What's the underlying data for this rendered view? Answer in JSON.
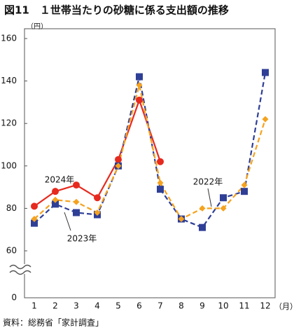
{
  "chart_data": {
    "type": "line",
    "title": "図11　１世帯当たりの砂糖に係る支出額の推移",
    "y_unit": "（円）",
    "x_unit": "（月）",
    "source": "資料：総務省「家計調査」",
    "categories": [
      "1",
      "2",
      "3",
      "4",
      "5",
      "6",
      "7",
      "8",
      "9",
      "10",
      "11",
      "12"
    ],
    "series": [
      {
        "name": "2024年",
        "color": "#e62a1f",
        "marker": "circle",
        "dashed": false,
        "values": [
          81,
          88,
          91,
          85,
          103,
          131,
          102,
          null,
          null,
          null,
          null,
          null
        ]
      },
      {
        "name": "2023年",
        "color": "#2f3f96",
        "marker": "square",
        "dashed": true,
        "values": [
          73,
          82,
          78,
          77,
          100,
          142,
          89,
          75,
          71,
          85,
          88,
          144
        ]
      },
      {
        "name": "2022年",
        "color": "#f5a21e",
        "marker": "diamond",
        "dashed": true,
        "values": [
          75,
          84,
          83,
          78,
          100,
          138,
          92,
          75,
          80,
          80,
          91,
          122
        ]
      }
    ],
    "ylim": [
      0,
      160
    ],
    "yticks": [
      0,
      60,
      80,
      100,
      120,
      140,
      160
    ],
    "axis_break": [
      0,
      60
    ],
    "grid": false
  }
}
